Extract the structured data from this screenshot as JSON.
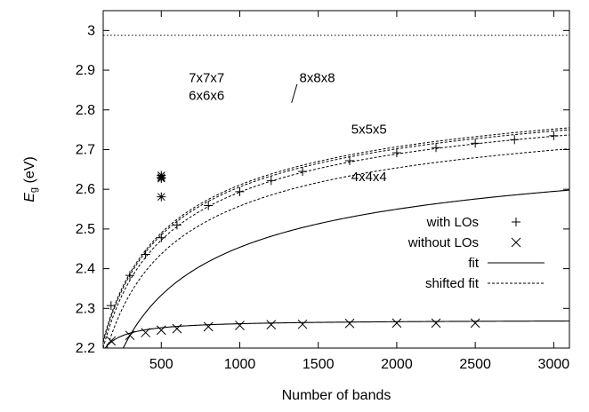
{
  "chart_data": {
    "type": "line",
    "xlabel": "Number of bands",
    "ylabel_main": "E",
    "ylabel_sub": "g",
    "ylabel_unit": " (eV)",
    "xlim": [
      130,
      3100
    ],
    "ylim": [
      2.2,
      3.05
    ],
    "x_ticks": [
      500,
      1000,
      1500,
      2000,
      2500,
      3000
    ],
    "y_ticks": [
      2.2,
      2.3,
      2.4,
      2.5,
      2.6,
      2.7,
      2.8,
      2.9,
      3.0
    ],
    "y_tick_labels": [
      "2.2",
      "2.3",
      "2.4",
      "2.5",
      "2.6",
      "2.7",
      "2.8",
      "2.9",
      "3"
    ],
    "reference_line": {
      "y": 2.988,
      "style": "dotted"
    },
    "series": [
      {
        "name": "with LOs",
        "marker": "plus",
        "x": [
          180,
          300,
          400,
          500,
          600,
          800,
          1000,
          1200,
          1400,
          1700,
          2000,
          2250,
          2500,
          2750,
          3000
        ],
        "y": [
          2.307,
          2.383,
          2.436,
          2.478,
          2.51,
          2.559,
          2.594,
          2.622,
          2.645,
          2.672,
          2.692,
          2.705,
          2.716,
          2.725,
          2.735
        ]
      },
      {
        "name": "without LOs",
        "marker": "cross",
        "x": [
          180,
          300,
          400,
          500,
          600,
          800,
          1000,
          1200,
          1400,
          1700,
          2000,
          2250,
          2500
        ],
        "y": [
          2.218,
          2.232,
          2.239,
          2.245,
          2.249,
          2.254,
          2.257,
          2.259,
          2.26,
          2.262,
          2.263,
          2.263,
          2.263
        ]
      }
    ],
    "fit_curves": {
      "with_LOs": {
        "a": 2.805,
        "b": 11.75,
        "c": 119.78,
        "legend": "fit"
      },
      "without_LOs": {
        "a": 2.2715,
        "b": 10.18,
        "c": 0
      }
    },
    "shifted_fits": [
      {
        "label": "5x5x5",
        "shift": 0.104
      },
      {
        "label": "6x6x6",
        "shift": 0.139
      },
      {
        "label": "7x7x7",
        "shift": 0.152
      },
      {
        "label": "8x8x8",
        "shift": 0.157
      }
    ],
    "shifted_fit_legend": "shifted fit",
    "shifted_markers": [
      {
        "x": 500,
        "y": 2.581,
        "marker": "asterisk"
      },
      {
        "x": 500,
        "y": 2.627,
        "marker": "asterisk"
      },
      {
        "x": 500,
        "y": 2.63,
        "marker": "asterisk"
      },
      {
        "x": 500,
        "y": 2.635,
        "marker": "asterisk"
      }
    ],
    "annotations": [
      {
        "text": "4x4x4",
        "x": 1710,
        "y": 2.62
      },
      {
        "text": "5x5x5",
        "x": 1710,
        "y": 2.74
      },
      {
        "text": "6x6x6",
        "x": 675,
        "y": 2.825
      },
      {
        "text": "7x7x7",
        "x": 675,
        "y": 2.87
      },
      {
        "text": "8x8x8",
        "x": 1380,
        "y": 2.87
      }
    ],
    "legend": {
      "placement": "bottom-right",
      "entries": [
        {
          "label": "with LOs",
          "symbol": "plus"
        },
        {
          "label": "without LOs",
          "symbol": "cross"
        },
        {
          "label": "fit",
          "symbol": "solid-line"
        },
        {
          "label": "shifted fit",
          "symbol": "dashed-line"
        }
      ]
    }
  }
}
